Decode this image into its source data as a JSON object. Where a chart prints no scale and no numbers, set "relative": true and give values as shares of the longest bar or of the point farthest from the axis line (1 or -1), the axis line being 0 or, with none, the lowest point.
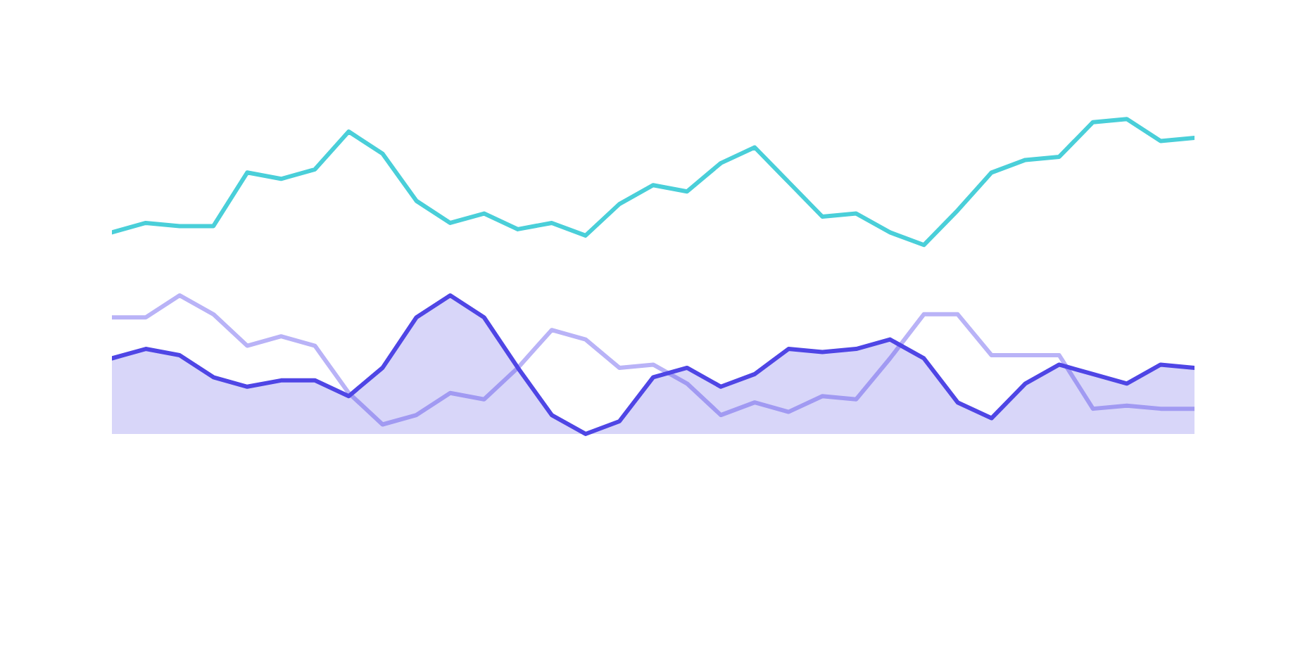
{
  "chart_data": {
    "type": "line",
    "relative": true,
    "categories": [
      null,
      null,
      null,
      null,
      null,
      null,
      null,
      null,
      null,
      null,
      null,
      null,
      null,
      null,
      null,
      null,
      null,
      null,
      null,
      null,
      null,
      null,
      null,
      null,
      null,
      null,
      null,
      null,
      null,
      null,
      null,
      null,
      null
    ],
    "series": [
      {
        "color": "#b9b3f7",
        "values": [
          0.37,
          0.37,
          0.44,
          0.38,
          0.28,
          0.31,
          0.28,
          0.13,
          0.03,
          0.06,
          0.13,
          0.11,
          0.21,
          0.33,
          0.3,
          0.21,
          0.22,
          0.16,
          0.06,
          0.1,
          0.07,
          0.12,
          0.11,
          0.24,
          0.38,
          0.38,
          0.25,
          0.25,
          0.25,
          0.08,
          0.09,
          0.08,
          0.08
        ]
      },
      {
        "type": "area",
        "color": "#4f46e5",
        "values": [
          0.24,
          0.27,
          0.25,
          0.18,
          0.15,
          0.17,
          0.17,
          0.12,
          0.21,
          0.37,
          0.44,
          0.37,
          0.21,
          0.06,
          0.0,
          0.04,
          0.18,
          0.21,
          0.15,
          0.19,
          0.27,
          0.26,
          0.27,
          0.3,
          0.24,
          0.1,
          0.05,
          0.16,
          0.22,
          0.19,
          0.16,
          0.22,
          0.21
        ]
      },
      {
        "color": "#4acfd9",
        "values": [
          0.64,
          0.67,
          0.66,
          0.66,
          0.83,
          0.81,
          0.84,
          0.96,
          0.89,
          0.74,
          0.67,
          0.7,
          0.65,
          0.67,
          0.63,
          0.73,
          0.79,
          0.77,
          0.86,
          0.91,
          0.8,
          0.69,
          0.7,
          0.64,
          0.6,
          0.71,
          0.83,
          0.87,
          0.88,
          0.99,
          1.0,
          0.93,
          0.94
        ]
      }
    ]
  }
}
